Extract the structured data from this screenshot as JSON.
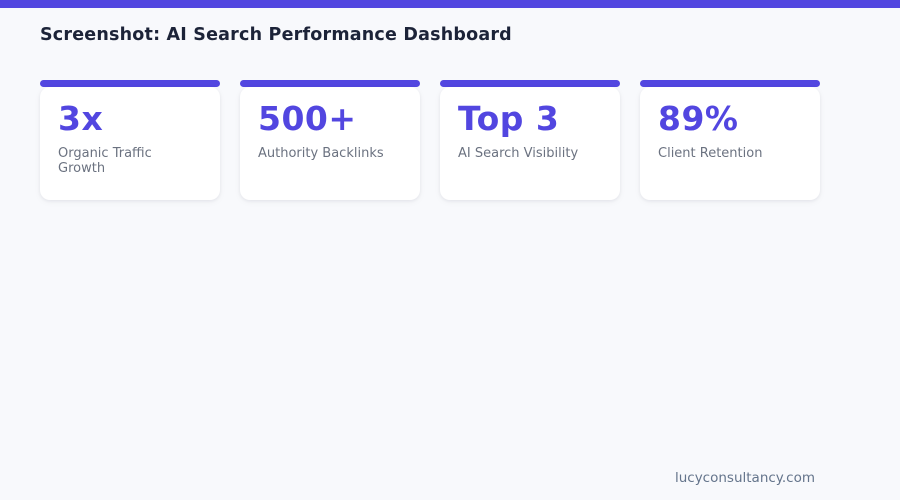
{
  "page": {
    "title": "Screenshot: AI Search Performance Dashboard",
    "footer": "lucyconsultancy.com"
  },
  "colors": {
    "accent": "#5246e0",
    "background": "#f8f9fc",
    "card_bg": "#ffffff",
    "title_text": "#1c2338",
    "label_text": "#6b7280",
    "footer_text": "#64748b"
  },
  "metrics": [
    {
      "value": "3x",
      "label": "Organic Traffic Growth"
    },
    {
      "value": "500+",
      "label": "Authority Backlinks"
    },
    {
      "value": "Top 3",
      "label": "AI Search Visibility"
    },
    {
      "value": "89%",
      "label": "Client Retention"
    }
  ]
}
